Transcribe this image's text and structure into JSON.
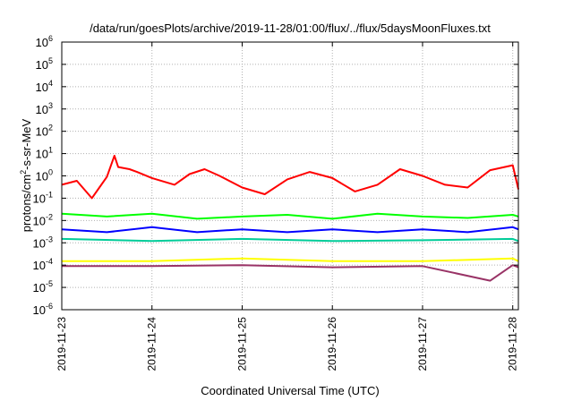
{
  "chart_data": {
    "type": "line",
    "title": "/data/run/goesPlots/archive/2019-11-28/01:00/flux/../flux/5daysMoonFluxes.txt",
    "xlabel": "Coordinated Universal Time (UTC)",
    "ylabel": {
      "pre": "protons/cm",
      "sup": "2",
      "post": "-s-sr-MeV"
    },
    "yscale": "log",
    "grid": true,
    "ylim": [
      1e-06,
      1000000.0
    ],
    "xlim": [
      "2019-11-23T00:00",
      "2019-11-28T01:30"
    ],
    "yticks": [
      {
        "base": "10",
        "exp": "-6",
        "value": 1e-06
      },
      {
        "base": "10",
        "exp": "-5",
        "value": 1e-05
      },
      {
        "base": "10",
        "exp": "-4",
        "value": 0.0001
      },
      {
        "base": "10",
        "exp": "-3",
        "value": 0.001
      },
      {
        "base": "10",
        "exp": "-2",
        "value": 0.01
      },
      {
        "base": "10",
        "exp": "-1",
        "value": 0.1
      },
      {
        "base": "10",
        "exp": "0",
        "value": 1
      },
      {
        "base": "10",
        "exp": "1",
        "value": 10
      },
      {
        "base": "10",
        "exp": "2",
        "value": 100
      },
      {
        "base": "10",
        "exp": "3",
        "value": 1000
      },
      {
        "base": "10",
        "exp": "4",
        "value": 10000
      },
      {
        "base": "10",
        "exp": "5",
        "value": 100000
      },
      {
        "base": "10",
        "exp": "6",
        "value": 1000000
      }
    ],
    "xticks": [
      "2019-11-23",
      "2019-11-24",
      "2019-11-25",
      "2019-11-26",
      "2019-11-27",
      "2019-11-28"
    ],
    "series": [
      {
        "color": "#ff0000",
        "x": [
          "2019-11-23T00:00",
          "2019-11-23T04:00",
          "2019-11-23T08:00",
          "2019-11-23T10:00",
          "2019-11-23T12:00",
          "2019-11-23T14:00",
          "2019-11-23T15:00",
          "2019-11-23T18:00",
          "2019-11-23T20:00",
          "2019-11-24T00:00",
          "2019-11-24T06:00",
          "2019-11-24T10:00",
          "2019-11-24T14:00",
          "2019-11-24T18:00",
          "2019-11-25T00:00",
          "2019-11-25T06:00",
          "2019-11-25T12:00",
          "2019-11-25T18:00",
          "2019-11-26T00:00",
          "2019-11-26T06:00",
          "2019-11-26T12:00",
          "2019-11-26T18:00",
          "2019-11-27T00:00",
          "2019-11-27T06:00",
          "2019-11-27T12:00",
          "2019-11-27T18:00",
          "2019-11-28T00:00",
          "2019-11-28T01:30"
        ],
        "y": [
          0.4,
          0.6,
          0.1,
          0.3,
          0.9,
          8,
          2.5,
          2,
          1.5,
          0.8,
          0.4,
          1.2,
          2,
          1,
          0.3,
          0.15,
          0.7,
          1.5,
          0.8,
          0.2,
          0.4,
          2,
          1,
          0.4,
          0.3,
          1.8,
          3,
          0.25
        ]
      },
      {
        "color": "#00ff00",
        "x": [
          "2019-11-23T00:00",
          "2019-11-23T12:00",
          "2019-11-24T00:00",
          "2019-11-24T12:00",
          "2019-11-25T00:00",
          "2019-11-25T12:00",
          "2019-11-26T00:00",
          "2019-11-26T12:00",
          "2019-11-27T00:00",
          "2019-11-27T12:00",
          "2019-11-28T00:00",
          "2019-11-28T01:30"
        ],
        "y": [
          0.02,
          0.015,
          0.02,
          0.012,
          0.015,
          0.018,
          0.012,
          0.02,
          0.015,
          0.013,
          0.018,
          0.015
        ]
      },
      {
        "color": "#00cc99",
        "x": [
          "2019-11-23T00:00",
          "2019-11-24T00:00",
          "2019-11-25T00:00",
          "2019-11-26T00:00",
          "2019-11-27T00:00",
          "2019-11-28T00:00",
          "2019-11-28T01:30"
        ],
        "y": [
          0.0015,
          0.0012,
          0.0015,
          0.0012,
          0.0013,
          0.0015,
          0.0012
        ]
      },
      {
        "color": "#0000ff",
        "x": [
          "2019-11-23T00:00",
          "2019-11-23T12:00",
          "2019-11-24T00:00",
          "2019-11-24T12:00",
          "2019-11-25T00:00",
          "2019-11-25T12:00",
          "2019-11-26T00:00",
          "2019-11-26T12:00",
          "2019-11-27T00:00",
          "2019-11-27T12:00",
          "2019-11-28T00:00",
          "2019-11-28T01:30"
        ],
        "y": [
          0.004,
          0.003,
          0.005,
          0.003,
          0.004,
          0.003,
          0.004,
          0.003,
          0.004,
          0.003,
          0.005,
          0.004
        ]
      },
      {
        "color": "#ffff00",
        "x": [
          "2019-11-23T00:00",
          "2019-11-24T00:00",
          "2019-11-25T00:00",
          "2019-11-26T00:00",
          "2019-11-27T00:00",
          "2019-11-28T00:00",
          "2019-11-28T01:30"
        ],
        "y": [
          0.00015,
          0.00015,
          0.0002,
          0.00015,
          0.00015,
          0.0002,
          0.00015
        ]
      },
      {
        "color": "#993366",
        "x": [
          "2019-11-23T00:00",
          "2019-11-24T00:00",
          "2019-11-25T00:00",
          "2019-11-26T00:00",
          "2019-11-27T00:00",
          "2019-11-27T18:00",
          "2019-11-28T00:00",
          "2019-11-28T01:30"
        ],
        "y": [
          9e-05,
          9e-05,
          0.0001,
          8e-05,
          9e-05,
          2e-05,
          0.0001,
          8e-05
        ]
      }
    ]
  }
}
